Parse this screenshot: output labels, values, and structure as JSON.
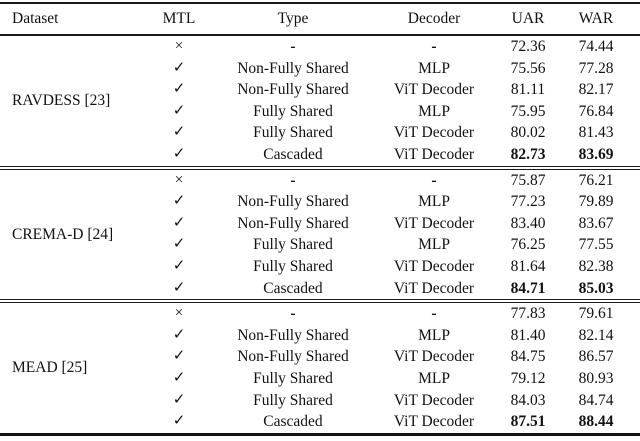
{
  "table": {
    "headers": {
      "dataset": "Dataset",
      "mtl": "MTL",
      "type": "Type",
      "decoder": "Decoder",
      "uar": "UAR",
      "war": "WAR"
    },
    "mtl_icons": {
      "enabled": "✓",
      "disabled": "×"
    },
    "groups": [
      {
        "dataset": "RAVDESS [23]",
        "rows": [
          {
            "mtl": "×",
            "type": "-",
            "decoder": "-",
            "uar": "72.36",
            "war": "74.44",
            "bold": false
          },
          {
            "mtl": "✓",
            "type": "Non-Fully Shared",
            "decoder": "MLP",
            "uar": "75.56",
            "war": "77.28",
            "bold": false
          },
          {
            "mtl": "✓",
            "type": "Non-Fully Shared",
            "decoder": "ViT Decoder",
            "uar": "81.11",
            "war": "82.17",
            "bold": false
          },
          {
            "mtl": "✓",
            "type": "Fully Shared",
            "decoder": "MLP",
            "uar": "75.95",
            "war": "76.84",
            "bold": false
          },
          {
            "mtl": "✓",
            "type": "Fully Shared",
            "decoder": "ViT Decoder",
            "uar": "80.02",
            "war": "81.43",
            "bold": false
          },
          {
            "mtl": "✓",
            "type": "Cascaded",
            "decoder": "ViT Decoder",
            "uar": "82.73",
            "war": "83.69",
            "bold": true
          }
        ]
      },
      {
        "dataset": "CREMA-D [24]",
        "rows": [
          {
            "mtl": "×",
            "type": "-",
            "decoder": "-",
            "uar": "75.87",
            "war": "76.21",
            "bold": false
          },
          {
            "mtl": "✓",
            "type": "Non-Fully Shared",
            "decoder": "MLP",
            "uar": "77.23",
            "war": "79.89",
            "bold": false
          },
          {
            "mtl": "✓",
            "type": "Non-Fully Shared",
            "decoder": "ViT Decoder",
            "uar": "83.40",
            "war": "83.67",
            "bold": false
          },
          {
            "mtl": "✓",
            "type": "Fully Shared",
            "decoder": "MLP",
            "uar": "76.25",
            "war": "77.55",
            "bold": false
          },
          {
            "mtl": "✓",
            "type": "Fully Shared",
            "decoder": "ViT Decoder",
            "uar": "81.64",
            "war": "82.38",
            "bold": false
          },
          {
            "mtl": "✓",
            "type": "Cascaded",
            "decoder": "ViT Decoder",
            "uar": "84.71",
            "war": "85.03",
            "bold": true
          }
        ]
      },
      {
        "dataset": "MEAD [25]",
        "rows": [
          {
            "mtl": "×",
            "type": "-",
            "decoder": "-",
            "uar": "77.83",
            "war": "79.61",
            "bold": false
          },
          {
            "mtl": "✓",
            "type": "Non-Fully Shared",
            "decoder": "MLP",
            "uar": "81.40",
            "war": "82.14",
            "bold": false
          },
          {
            "mtl": "✓",
            "type": "Non-Fully Shared",
            "decoder": "ViT Decoder",
            "uar": "84.75",
            "war": "86.57",
            "bold": false
          },
          {
            "mtl": "✓",
            "type": "Fully Shared",
            "decoder": "MLP",
            "uar": "79.12",
            "war": "80.93",
            "bold": false
          },
          {
            "mtl": "✓",
            "type": "Fully Shared",
            "decoder": "ViT Decoder",
            "uar": "84.03",
            "war": "84.74",
            "bold": false
          },
          {
            "mtl": "✓",
            "type": "Cascaded",
            "decoder": "ViT Decoder",
            "uar": "87.51",
            "war": "88.44",
            "bold": true
          }
        ]
      }
    ]
  }
}
